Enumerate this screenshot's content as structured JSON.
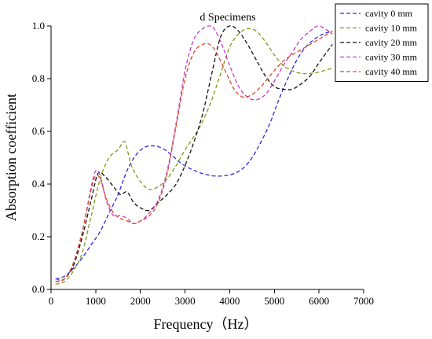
{
  "chart_data": {
    "type": "line",
    "title": "d Specimens",
    "xlabel": "Frequency（Hz）",
    "ylabel": "Absorption coefficient",
    "xlim": [
      0,
      7000
    ],
    "ylim": [
      0,
      1.0
    ],
    "xticks": [
      0,
      1000,
      2000,
      3000,
      4000,
      5000,
      6000,
      7000
    ],
    "yticks": [
      0.0,
      0.2,
      0.4,
      0.6,
      0.8,
      1.0
    ],
    "xtick_labels": [
      "0",
      "1000",
      "2000",
      "3000",
      "4000",
      "5000",
      "6000",
      "7000"
    ],
    "ytick_labels": [
      "0.0",
      "0.2",
      "0.4",
      "0.6",
      "0.8",
      "1.0"
    ],
    "grid": false,
    "legend_position": "top-right",
    "series": [
      {
        "name": "cavity 0 mm",
        "color": "#2b2bd9",
        "x": [
          100,
          300,
          500,
          700,
          900,
          1100,
          1300,
          1500,
          1700,
          1900,
          2100,
          2300,
          2500,
          2700,
          2900,
          3100,
          3300,
          3500,
          3700,
          3900,
          4100,
          4300,
          4500,
          4700,
          4900,
          5100,
          5300,
          5500,
          5700,
          5900,
          6100,
          6300
        ],
        "y": [
          0.04,
          0.05,
          0.08,
          0.12,
          0.17,
          0.22,
          0.29,
          0.36,
          0.45,
          0.51,
          0.54,
          0.545,
          0.535,
          0.51,
          0.48,
          0.46,
          0.445,
          0.435,
          0.43,
          0.432,
          0.44,
          0.46,
          0.5,
          0.56,
          0.63,
          0.72,
          0.8,
          0.87,
          0.92,
          0.95,
          0.97,
          0.98
        ]
      },
      {
        "name": "cavity 10 mm",
        "color": "#7f9a1a",
        "x": [
          100,
          300,
          500,
          700,
          900,
          1100,
          1300,
          1500,
          1650,
          1800,
          2000,
          2200,
          2400,
          2600,
          2800,
          3000,
          3200,
          3400,
          3600,
          3800,
          4000,
          4200,
          4400,
          4600,
          4800,
          5000,
          5200,
          5400,
          5600,
          5800,
          6000,
          6300
        ],
        "y": [
          0.02,
          0.03,
          0.07,
          0.14,
          0.28,
          0.42,
          0.5,
          0.53,
          0.56,
          0.47,
          0.41,
          0.38,
          0.39,
          0.42,
          0.47,
          0.53,
          0.58,
          0.64,
          0.72,
          0.82,
          0.92,
          0.97,
          0.99,
          0.98,
          0.94,
          0.89,
          0.85,
          0.83,
          0.82,
          0.82,
          0.825,
          0.84
        ]
      },
      {
        "name": "cavity 20 mm",
        "color": "#111111",
        "x": [
          100,
          300,
          500,
          700,
          900,
          1050,
          1200,
          1400,
          1550,
          1700,
          1850,
          2000,
          2200,
          2400,
          2600,
          2800,
          3000,
          3200,
          3400,
          3600,
          3800,
          4000,
          4200,
          4400,
          4600,
          4800,
          5000,
          5200,
          5400,
          5600,
          5800,
          6000,
          6300
        ],
        "y": [
          0.03,
          0.04,
          0.09,
          0.2,
          0.34,
          0.44,
          0.43,
          0.39,
          0.36,
          0.37,
          0.33,
          0.31,
          0.3,
          0.33,
          0.36,
          0.4,
          0.47,
          0.56,
          0.67,
          0.82,
          0.96,
          1.0,
          0.98,
          0.93,
          0.87,
          0.81,
          0.77,
          0.76,
          0.76,
          0.78,
          0.81,
          0.86,
          0.93
        ]
      },
      {
        "name": "cavity 30 mm",
        "color": "#c43ac4",
        "x": [
          100,
          300,
          500,
          700,
          900,
          1000,
          1100,
          1250,
          1400,
          1550,
          1700,
          1850,
          2000,
          2200,
          2400,
          2600,
          2800,
          3000,
          3200,
          3400,
          3550,
          3650,
          3800,
          4000,
          4200,
          4400,
          4600,
          4800,
          5000,
          5200,
          5400,
          5600,
          5800,
          6000,
          6300
        ],
        "y": [
          0.04,
          0.04,
          0.1,
          0.22,
          0.39,
          0.45,
          0.43,
          0.33,
          0.28,
          0.28,
          0.27,
          0.25,
          0.26,
          0.29,
          0.34,
          0.45,
          0.63,
          0.83,
          0.95,
          0.99,
          1.0,
          0.99,
          0.94,
          0.85,
          0.77,
          0.73,
          0.72,
          0.74,
          0.79,
          0.85,
          0.9,
          0.95,
          0.98,
          1.0,
          0.97
        ]
      },
      {
        "name": "cavity 40 mm",
        "color": "#d94a2b",
        "x": [
          100,
          300,
          500,
          700,
          900,
          1000,
          1100,
          1250,
          1400,
          1550,
          1700,
          1850,
          2000,
          2200,
          2400,
          2600,
          2800,
          3000,
          3200,
          3400,
          3550,
          3700,
          3900,
          4100,
          4300,
          4500,
          4700,
          4900,
          5100,
          5300,
          5500,
          5700,
          5900,
          6100,
          6300
        ],
        "y": [
          0.03,
          0.04,
          0.1,
          0.22,
          0.38,
          0.43,
          0.42,
          0.34,
          0.29,
          0.27,
          0.26,
          0.25,
          0.26,
          0.28,
          0.33,
          0.44,
          0.62,
          0.8,
          0.9,
          0.93,
          0.93,
          0.9,
          0.83,
          0.76,
          0.73,
          0.74,
          0.77,
          0.81,
          0.85,
          0.88,
          0.9,
          0.92,
          0.94,
          0.96,
          0.98
        ]
      }
    ]
  }
}
